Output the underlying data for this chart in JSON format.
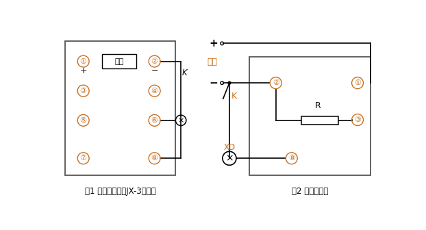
{
  "fig1_label": "图1 嵌入式继电器JX-3端子图",
  "fig2_label": "图2 试验接线图",
  "power_label": "电源",
  "dianYuan_box": "电源",
  "bg_color": "#ffffff",
  "line_color": "#000000",
  "circle_color": "#c87020",
  "text_color": "#000000",
  "orange_color": "#c87020",
  "label_color": "#c87020"
}
